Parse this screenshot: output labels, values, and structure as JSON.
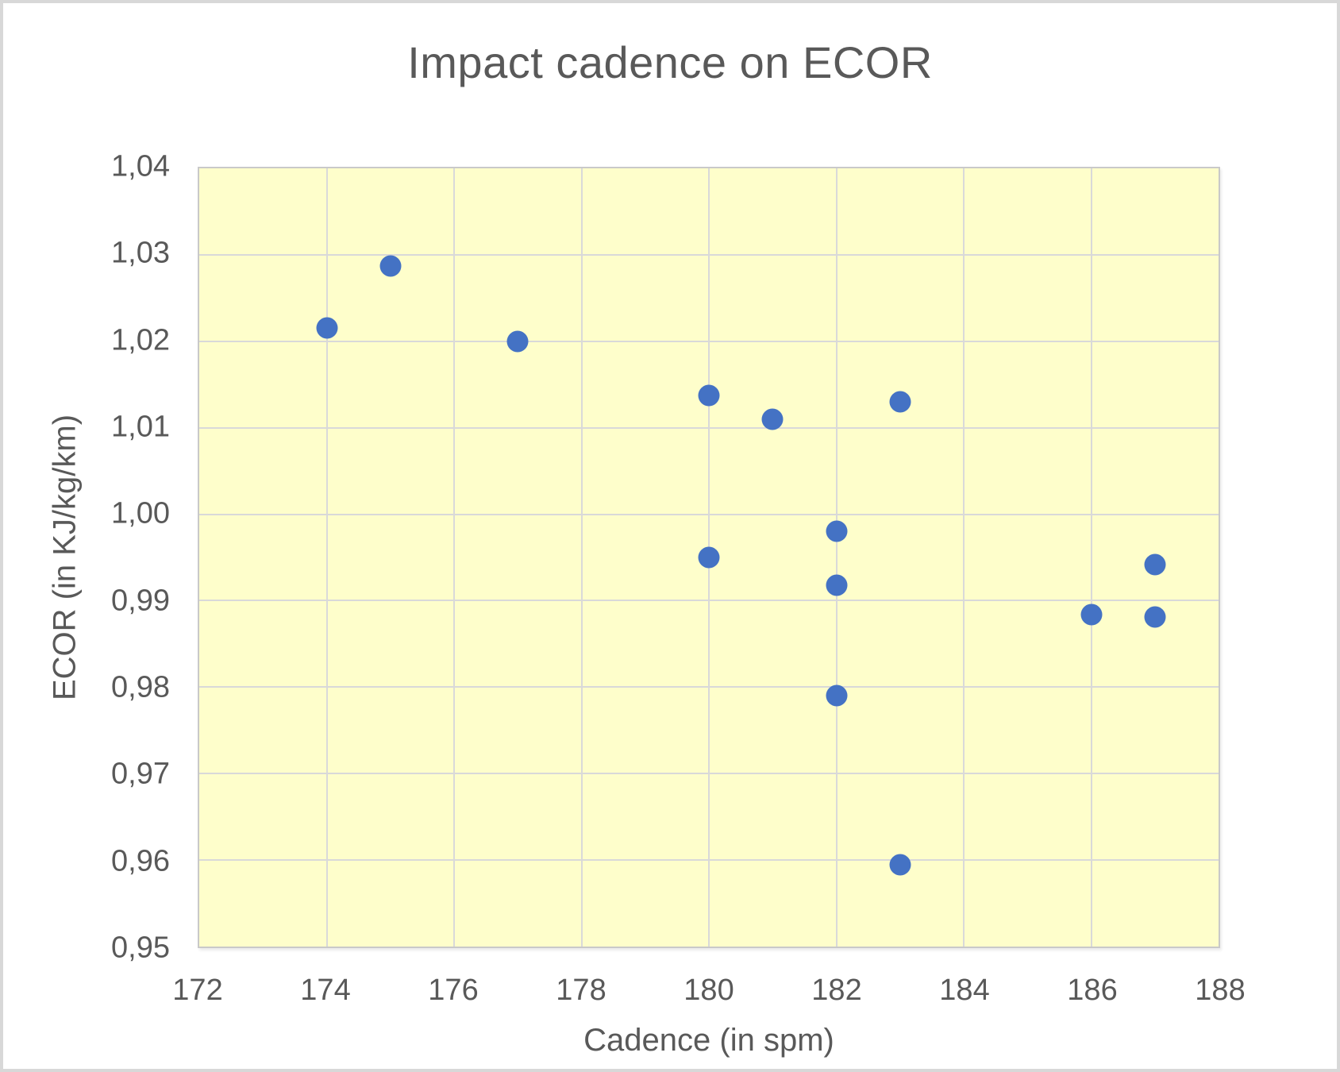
{
  "figure": {
    "background_color": "#ffffff",
    "border_color": "#d8d8d8",
    "text_color": "#595959"
  },
  "chart_data": {
    "type": "scatter",
    "title": "Impact cadence on ECOR",
    "xlabel": "Cadence (in spm)",
    "ylabel": "ECOR (in KJ/kg/km)",
    "xlim": [
      172,
      188
    ],
    "ylim": [
      0.95,
      1.04
    ],
    "grid": true,
    "legend_position": "none",
    "plot_background_color": "#fefecb",
    "gridline_color": "#d9d9d9",
    "point_color": "#4472c4",
    "x_ticks": [
      {
        "value": 172,
        "label": "172"
      },
      {
        "value": 174,
        "label": "174"
      },
      {
        "value": 176,
        "label": "176"
      },
      {
        "value": 178,
        "label": "178"
      },
      {
        "value": 180,
        "label": "180"
      },
      {
        "value": 182,
        "label": "182"
      },
      {
        "value": 184,
        "label": "184"
      },
      {
        "value": 186,
        "label": "186"
      },
      {
        "value": 188,
        "label": "188"
      }
    ],
    "y_ticks": [
      {
        "value": 1.04,
        "label": "1,04"
      },
      {
        "value": 1.03,
        "label": "1,03"
      },
      {
        "value": 1.02,
        "label": "1,02"
      },
      {
        "value": 1.01,
        "label": "1,01"
      },
      {
        "value": 1.0,
        "label": "1,00"
      },
      {
        "value": 0.99,
        "label": "0,99"
      },
      {
        "value": 0.98,
        "label": "0,98"
      },
      {
        "value": 0.97,
        "label": "0,97"
      },
      {
        "value": 0.96,
        "label": "0,96"
      },
      {
        "value": 0.95,
        "label": "0,95"
      }
    ],
    "points": [
      {
        "x": 174,
        "y": 1.0215
      },
      {
        "x": 175,
        "y": 1.0287
      },
      {
        "x": 177,
        "y": 1.02
      },
      {
        "x": 180,
        "y": 1.0137
      },
      {
        "x": 181,
        "y": 1.011
      },
      {
        "x": 183,
        "y": 1.013
      },
      {
        "x": 180,
        "y": 0.995
      },
      {
        "x": 182,
        "y": 0.998
      },
      {
        "x": 182,
        "y": 0.9918
      },
      {
        "x": 182,
        "y": 0.979
      },
      {
        "x": 183,
        "y": 0.9595
      },
      {
        "x": 186,
        "y": 0.9884
      },
      {
        "x": 187,
        "y": 0.9942
      },
      {
        "x": 187,
        "y": 0.9881
      }
    ]
  }
}
